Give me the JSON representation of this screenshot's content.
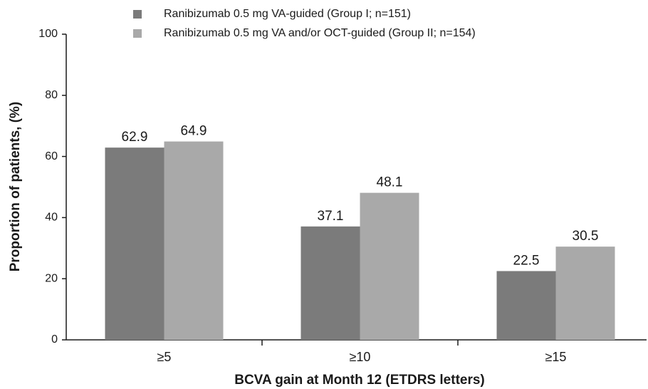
{
  "chart_data": {
    "type": "bar",
    "xlabel": "BCVA gain at Month 12 (ETDRS letters)",
    "ylabel": "Proportion of patients, (%)",
    "categories": [
      "≥5",
      "≥10",
      "≥15"
    ],
    "series": [
      {
        "name": "Ranibizumab 0.5 mg VA-guided (Group I; n=151)",
        "color": "#7b7b7b",
        "values": [
          62.9,
          37.1,
          22.5
        ]
      },
      {
        "name": "Ranibizumab 0.5 mg VA and/or OCT-guided (Group II; n=154)",
        "color": "#a9a9a9",
        "values": [
          64.9,
          48.1,
          30.5
        ]
      }
    ],
    "ylim": [
      0,
      100
    ],
    "yticks": [
      0,
      20,
      40,
      60,
      80,
      100
    ],
    "legend": "top"
  }
}
